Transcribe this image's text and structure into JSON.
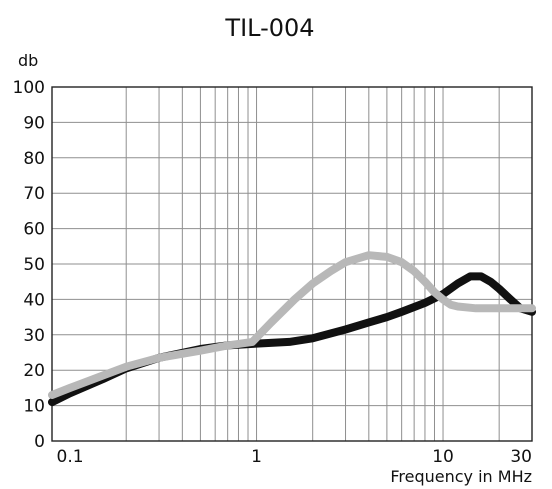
{
  "chart_data": {
    "type": "line",
    "title": "TIL-004",
    "ylabel": "db",
    "xlabel": "Frequency in MHz",
    "x_scale": "log",
    "xlim": [
      0.08,
      30
    ],
    "ylim": [
      0,
      100
    ],
    "y_ticks": [
      0,
      10,
      20,
      30,
      40,
      50,
      60,
      70,
      80,
      90,
      100
    ],
    "x_tick_labels": [
      {
        "value": 0.1,
        "label": "0.1"
      },
      {
        "value": 1,
        "label": "1"
      },
      {
        "value": 10,
        "label": "10"
      },
      {
        "value": 30,
        "label": "30"
      }
    ],
    "x_gridlines": [
      0.2,
      0.3,
      0.4,
      0.5,
      0.6,
      0.7,
      0.8,
      0.9,
      1,
      2,
      3,
      4,
      5,
      6,
      7,
      8,
      9,
      10,
      20
    ],
    "grid": true,
    "series": [
      {
        "color": "#111111",
        "points": [
          [
            0.08,
            11
          ],
          [
            0.1,
            13.5
          ],
          [
            0.15,
            17.5
          ],
          [
            0.2,
            20.5
          ],
          [
            0.3,
            23.5
          ],
          [
            0.5,
            26
          ],
          [
            0.7,
            27
          ],
          [
            1,
            27.5
          ],
          [
            1.5,
            28
          ],
          [
            2,
            29
          ],
          [
            3,
            31.5
          ],
          [
            4,
            33.5
          ],
          [
            5,
            35
          ],
          [
            6,
            36.5
          ],
          [
            8,
            39
          ],
          [
            10,
            41.5
          ],
          [
            12,
            44.5
          ],
          [
            14,
            46.5
          ],
          [
            16,
            46.5
          ],
          [
            18,
            45
          ],
          [
            20,
            43
          ],
          [
            23,
            40
          ],
          [
            26,
            37.5
          ],
          [
            30,
            36.5
          ]
        ]
      },
      {
        "color": "#b8b8b8",
        "points": [
          [
            0.08,
            13
          ],
          [
            0.1,
            15
          ],
          [
            0.15,
            18.5
          ],
          [
            0.2,
            21
          ],
          [
            0.3,
            23.5
          ],
          [
            0.5,
            25.5
          ],
          [
            0.7,
            27
          ],
          [
            0.95,
            28
          ],
          [
            1.2,
            33.5
          ],
          [
            1.6,
            40
          ],
          [
            2,
            44.5
          ],
          [
            2.5,
            48
          ],
          [
            3,
            50.5
          ],
          [
            4,
            52.5
          ],
          [
            5,
            52
          ],
          [
            6,
            50.5
          ],
          [
            7,
            48
          ],
          [
            8,
            45
          ],
          [
            9,
            42
          ],
          [
            10,
            40
          ],
          [
            11,
            38.5
          ],
          [
            12,
            38
          ],
          [
            15,
            37.5
          ],
          [
            20,
            37.5
          ],
          [
            25,
            37.5
          ],
          [
            30,
            37.5
          ]
        ]
      }
    ]
  }
}
